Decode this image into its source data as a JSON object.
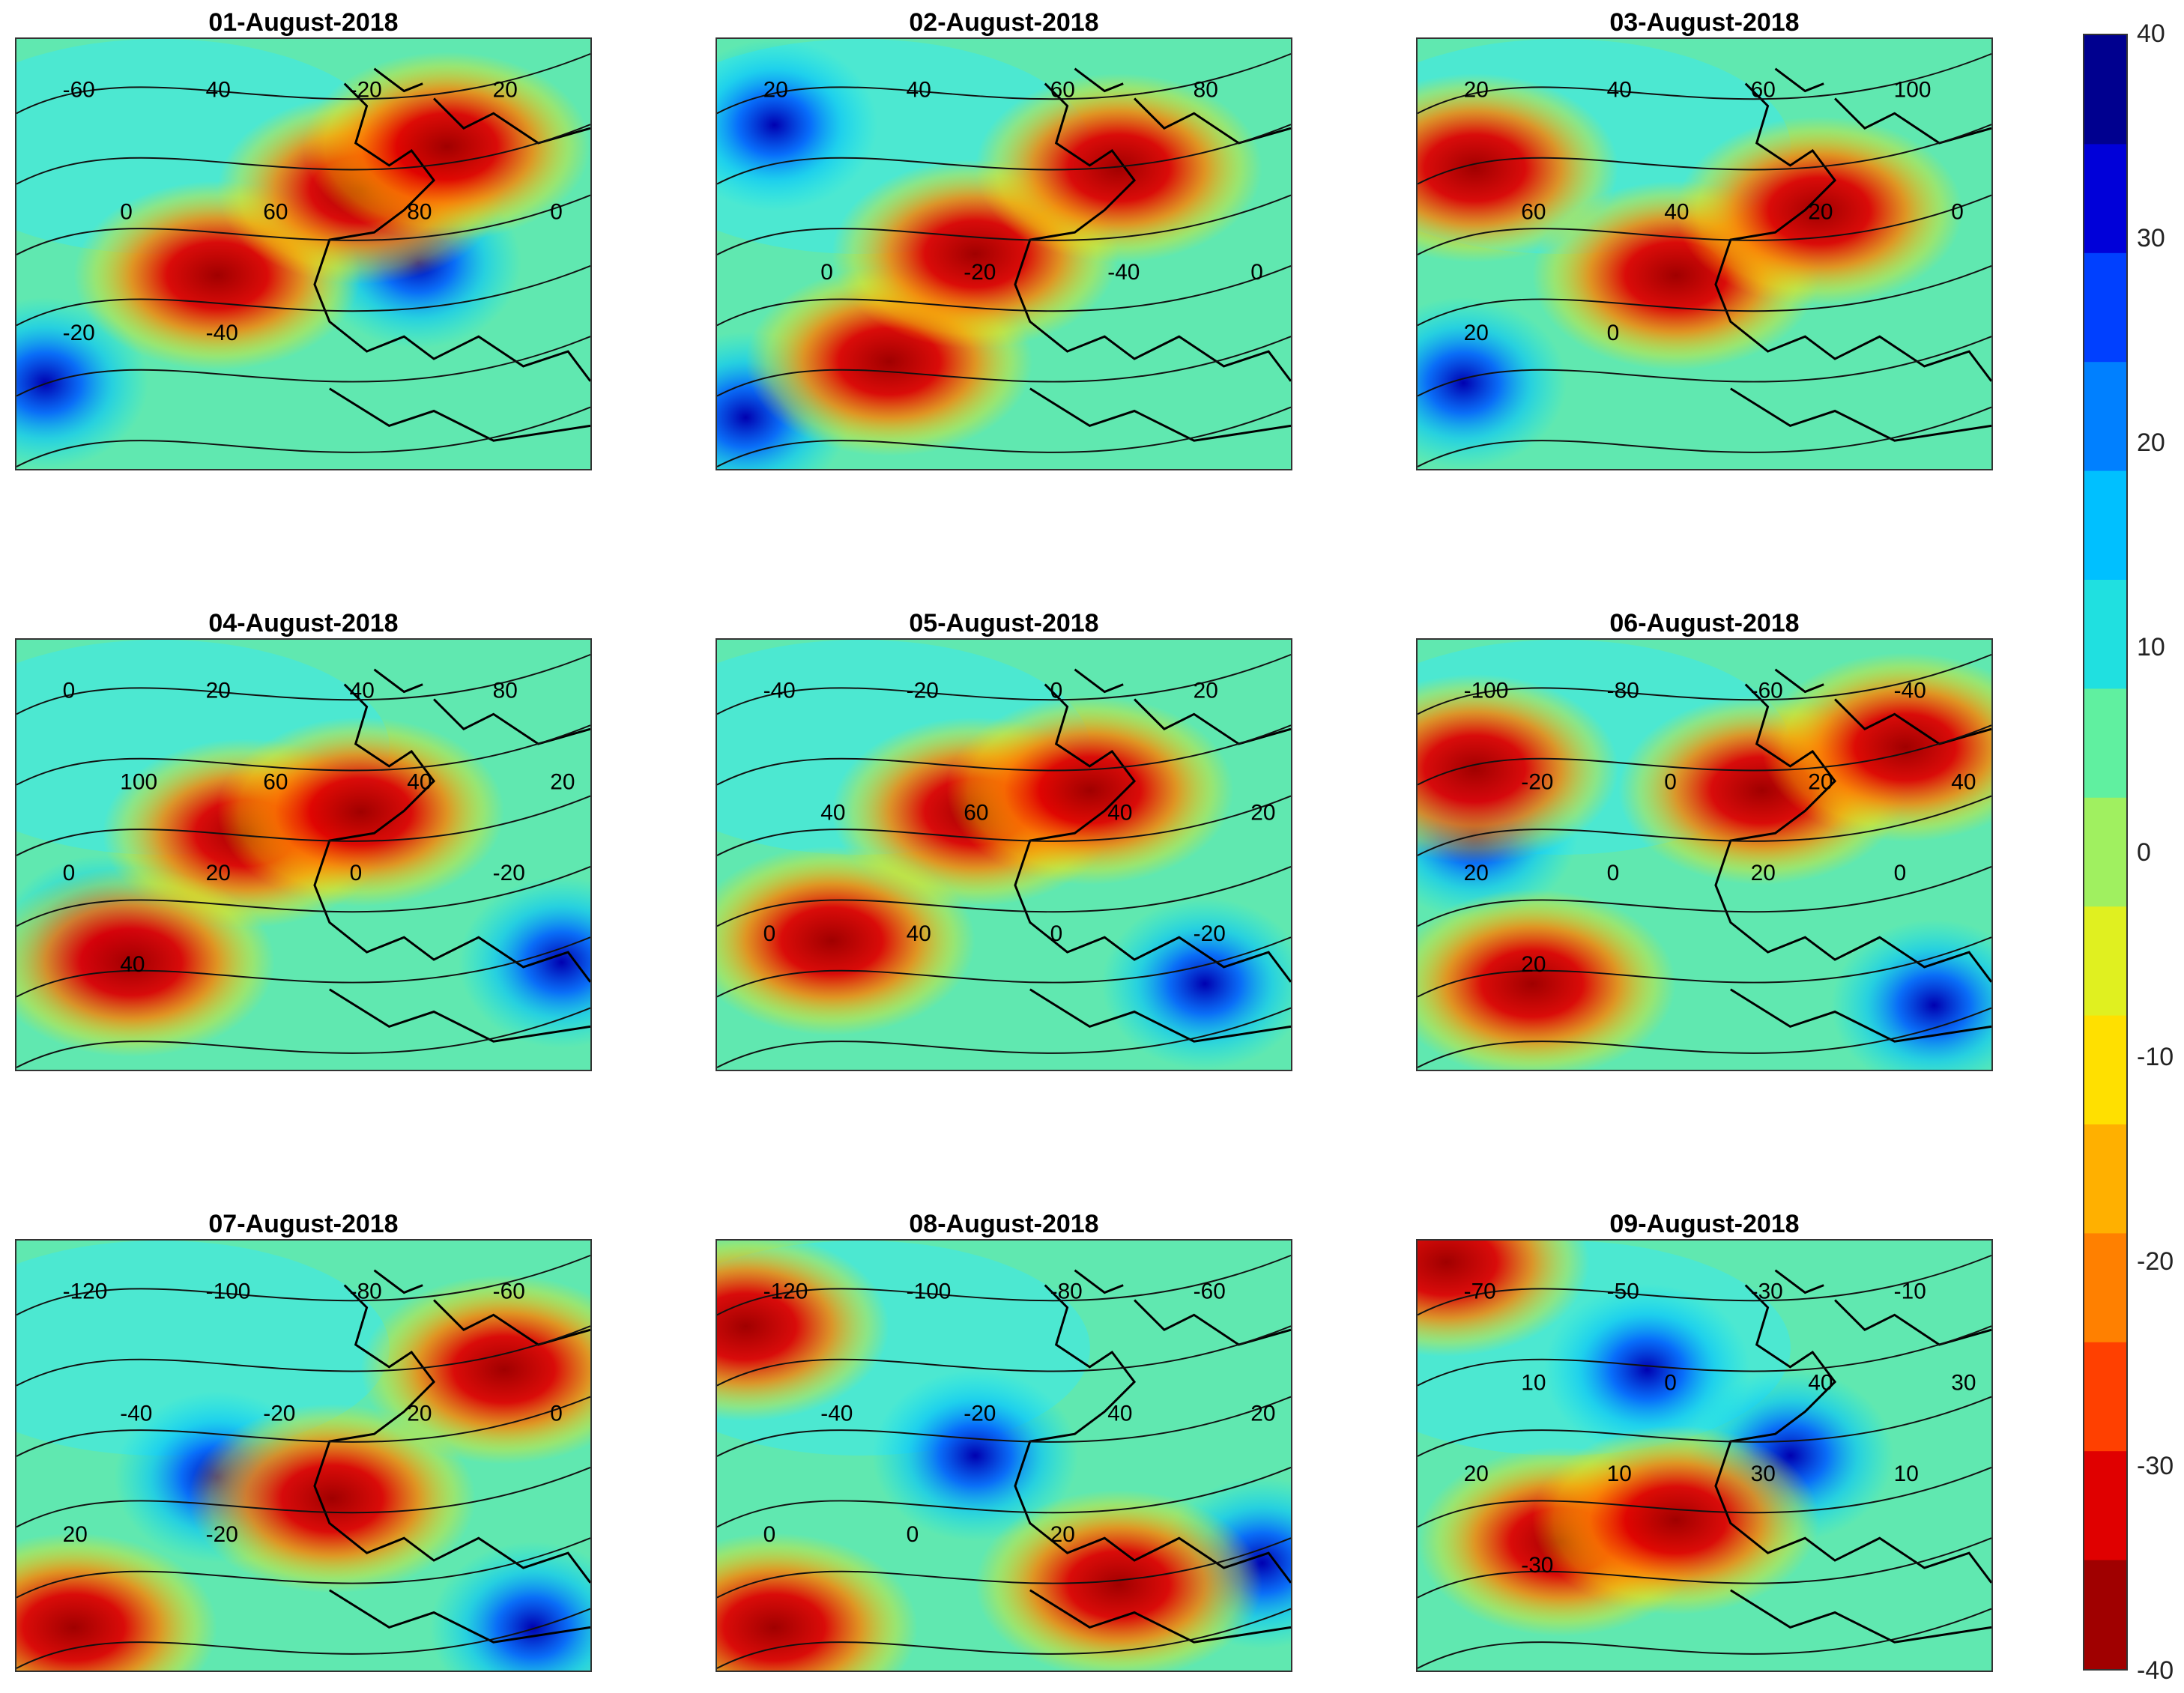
{
  "panels": [
    {
      "title": "01-August-2018",
      "labels": [
        "-60",
        "40",
        "-20",
        "20",
        "0",
        "60",
        "80",
        "0",
        "-20",
        "-40"
      ],
      "hot": [
        [
          0.35,
          0.55
        ],
        [
          0.6,
          0.35
        ],
        [
          0.75,
          0.25
        ]
      ],
      "cold": [
        [
          0.05,
          0.8
        ],
        [
          0.7,
          0.52
        ]
      ]
    },
    {
      "title": "02-August-2018",
      "labels": [
        "20",
        "40",
        "60",
        "80",
        "0",
        "-20",
        "-40",
        "0"
      ],
      "hot": [
        [
          0.3,
          0.75
        ],
        [
          0.45,
          0.5
        ],
        [
          0.7,
          0.3
        ]
      ],
      "cold": [
        [
          0.05,
          0.88
        ],
        [
          0.1,
          0.2
        ]
      ]
    },
    {
      "title": "03-August-2018",
      "labels": [
        "20",
        "40",
        "60",
        "100",
        "60",
        "40",
        "20",
        "0",
        "20",
        "0"
      ],
      "hot": [
        [
          0.1,
          0.3
        ],
        [
          0.45,
          0.55
        ],
        [
          0.7,
          0.4
        ]
      ],
      "cold": [
        [
          0.08,
          0.8
        ]
      ]
    },
    {
      "title": "04-August-2018",
      "labels": [
        "0",
        "20",
        "40",
        "80",
        "100",
        "60",
        "40",
        "20",
        "0",
        "20",
        "0",
        "-20",
        "40"
      ],
      "hot": [
        [
          0.4,
          0.45
        ],
        [
          0.2,
          0.75
        ],
        [
          0.6,
          0.4
        ]
      ],
      "cold": [
        [
          0.95,
          0.75
        ],
        [
          0.15,
          0.7
        ]
      ]
    },
    {
      "title": "05-August-2018",
      "labels": [
        "-40",
        "-20",
        "0",
        "20",
        "40",
        "60",
        "40",
        "20",
        "0",
        "40",
        "0",
        "-20"
      ],
      "hot": [
        [
          0.45,
          0.4
        ],
        [
          0.2,
          0.7
        ],
        [
          0.65,
          0.35
        ]
      ],
      "cold": [
        [
          0.85,
          0.8
        ]
      ]
    },
    {
      "title": "06-August-2018",
      "labels": [
        "-100",
        "-80",
        "-60",
        "-40",
        "-20",
        "0",
        "20",
        "40",
        "20",
        "0",
        "20",
        "0",
        "20"
      ],
      "hot": [
        [
          0.1,
          0.3
        ],
        [
          0.6,
          0.35
        ],
        [
          0.2,
          0.8
        ],
        [
          0.85,
          0.25
        ]
      ],
      "cold": [
        [
          0.9,
          0.85
        ],
        [
          0.1,
          0.45
        ]
      ]
    },
    {
      "title": "07-August-2018",
      "labels": [
        "-120",
        "-100",
        "-80",
        "-60",
        "-40",
        "-20",
        "20",
        "0",
        "20",
        "-20"
      ],
      "hot": [
        [
          0.85,
          0.3
        ],
        [
          0.1,
          0.9
        ],
        [
          0.55,
          0.6
        ]
      ],
      "cold": [
        [
          0.9,
          0.9
        ],
        [
          0.35,
          0.55
        ]
      ]
    },
    {
      "title": "08-August-2018",
      "labels": [
        "-120",
        "-100",
        "-80",
        "-60",
        "-40",
        "-20",
        "40",
        "20",
        "0",
        "0",
        "20"
      ],
      "hot": [
        [
          0.05,
          0.2
        ],
        [
          0.1,
          0.9
        ],
        [
          0.7,
          0.8
        ]
      ],
      "cold": [
        [
          0.45,
          0.5
        ],
        [
          0.95,
          0.75
        ]
      ]
    },
    {
      "title": "09-August-2018",
      "labels": [
        "-70",
        "-50",
        "-30",
        "-10",
        "10",
        "0",
        "40",
        "30",
        "20",
        "10",
        "30",
        "10",
        "-30"
      ],
      "hot": [
        [
          0.05,
          0.05
        ],
        [
          0.25,
          0.7
        ],
        [
          0.45,
          0.65
        ]
      ],
      "cold": [
        [
          0.4,
          0.3
        ],
        [
          0.65,
          0.5
        ]
      ]
    }
  ],
  "colorbar": {
    "ticks": [
      "40",
      "30",
      "20",
      "10",
      "0",
      "-10",
      "-20",
      "-30",
      "-40"
    ],
    "colors": [
      "#00008f",
      "#0000d9",
      "#0040ff",
      "#0080ff",
      "#00c0ff",
      "#20e0e0",
      "#60f0a0",
      "#a0f060",
      "#e0f020",
      "#ffe000",
      "#ffb000",
      "#ff8000",
      "#ff4000",
      "#e00000",
      "#a00000"
    ]
  }
}
